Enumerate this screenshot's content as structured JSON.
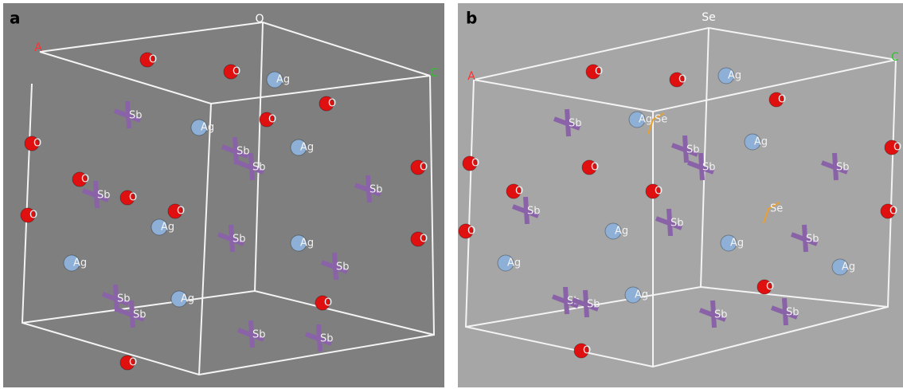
{
  "panels": [
    {
      "label": "a",
      "axes": [
        "A",
        "O",
        "C"
      ],
      "atoms": [
        "Ag",
        "Ag",
        "Ag",
        "Ag",
        "Ag",
        "Ag",
        "Ag",
        "Sb",
        "Sb",
        "Sb",
        "Sb",
        "Sb",
        "Sb",
        "Sb",
        "Sb",
        "Sb",
        "Sb",
        "Sb",
        "O",
        "O",
        "O",
        "O",
        "O",
        "O",
        "O",
        "O",
        "O",
        "O",
        "O",
        "O",
        "O"
      ]
    },
    {
      "label": "b",
      "axes": [
        "A",
        "Se",
        "C"
      ],
      "atoms": [
        "Ag",
        "Ag",
        "Ag",
        "Ag",
        "Ag",
        "Ag",
        "Ag",
        "Ag",
        "Sb",
        "Sb",
        "Sb",
        "Sb",
        "Sb",
        "Sb",
        "Sb",
        "Sb",
        "Sb",
        "Sb",
        "Sb",
        "Se",
        "Se",
        "O",
        "O",
        "O",
        "O",
        "O",
        "O",
        "O",
        "O",
        "O",
        "O",
        "O",
        "O"
      ]
    }
  ]
}
